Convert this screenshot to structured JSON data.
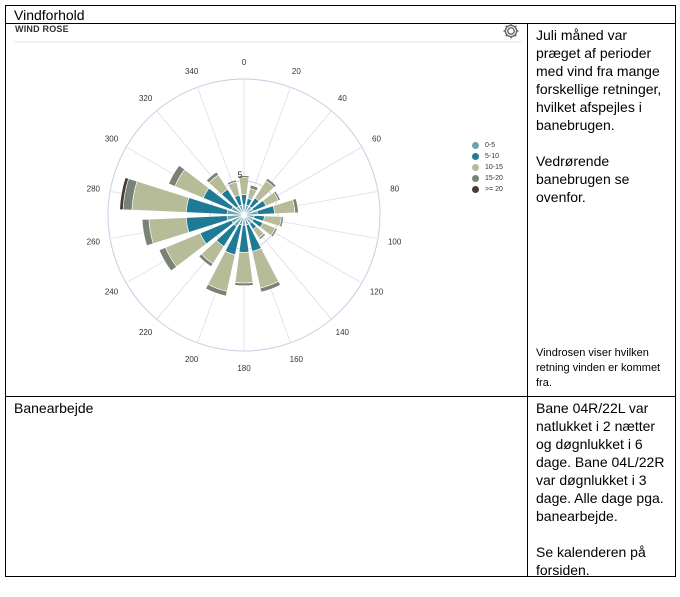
{
  "table": {
    "row1_title": "Vindforhold",
    "row2_title": "Banearbejde",
    "row1_side_paragraphs": [
      "Juli måned var præget af perioder med vind fra mange forskellige retninger, hvilket afspejles i banebrugen.",
      "Vedrørende banebrugen se ovenfor."
    ],
    "row1_side_note": "Vindrosen viser hvilken retning vinden er kommet fra.",
    "row2_side_paragraphs": [
      "Bane 04R/22L var natlukket i 2 nætter og døgnlukket i 6 dage. Bane 04L/22R var døgnlukket i 3 dage. Alle dage pga. banearbejde.",
      "Se kalenderen på forsiden."
    ]
  },
  "chart_icon": "gear-icon",
  "chart_data": {
    "type": "wind-rose",
    "title": "WIND ROSE",
    "direction_labels": [
      "0",
      "20",
      "40",
      "60",
      "80",
      "100",
      "120",
      "140",
      "160",
      "180",
      "200",
      "220",
      "240",
      "260",
      "280",
      "300",
      "320",
      "340"
    ],
    "radial_tick_label": "5",
    "radial_tick_value": 5,
    "radial_max": 20,
    "legend": [
      {
        "label": "0-5",
        "color": "#6aa3b0"
      },
      {
        "label": "5-10",
        "color": "#1f7a96"
      },
      {
        "label": "10-15",
        "color": "#b6bb98"
      },
      {
        "label": "15-20",
        "color": "#7a8278"
      },
      {
        "label": ">= 20",
        "color": "#4a3c34"
      }
    ],
    "sectors_deg": [
      0,
      20,
      40,
      60,
      80,
      100,
      120,
      140,
      160,
      180,
      200,
      220,
      240,
      260,
      280,
      300,
      320,
      340
    ],
    "series": [
      {
        "name": "0-5",
        "values": [
          1.5,
          1.5,
          1.5,
          1.5,
          2.0,
          1.5,
          1.5,
          1.5,
          1.5,
          1.5,
          1.5,
          2.0,
          2.0,
          2.5,
          2.5,
          2.0,
          1.5,
          1.5
        ]
      },
      {
        "name": "5-10",
        "values": [
          1.5,
          1.0,
          1.5,
          2.0,
          2.5,
          1.5,
          1.5,
          1.0,
          4.0,
          4.0,
          4.5,
          3.5,
          5.0,
          6.0,
          6.0,
          4.5,
          3.0,
          1.5
        ]
      },
      {
        "name": "10-15",
        "values": [
          2.5,
          1.5,
          3.0,
          2.0,
          3.0,
          2.5,
          2.0,
          1.5,
          5.5,
          4.5,
          5.5,
          3.0,
          5.5,
          5.5,
          8.0,
          4.5,
          2.5,
          2.0
        ]
      },
      {
        "name": "15-20",
        "values": [
          0.3,
          0.5,
          0.4,
          0.3,
          0.5,
          0.3,
          0.3,
          0.3,
          0.6,
          0.4,
          0.7,
          0.5,
          1.0,
          1.0,
          1.3,
          1.0,
          0.5,
          0.3
        ]
      },
      {
        "name": ">= 20",
        "values": [
          0,
          0,
          0,
          0,
          0,
          0,
          0,
          0,
          0,
          0,
          0,
          0,
          0,
          0,
          0.5,
          0,
          0,
          0
        ]
      }
    ]
  }
}
